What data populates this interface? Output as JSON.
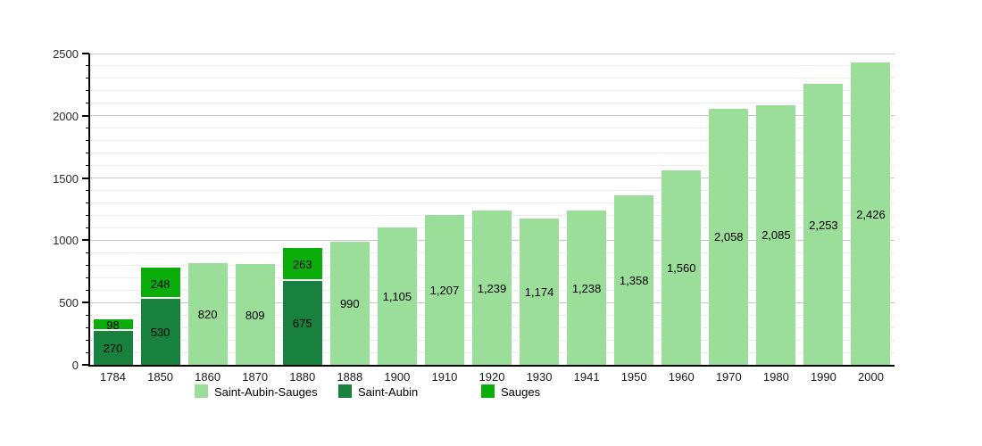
{
  "chart_data": {
    "type": "bar",
    "stacked": true,
    "title": "",
    "xlabel": "",
    "ylabel": "",
    "categories": [
      "1784",
      "1850",
      "1860",
      "1870",
      "1880",
      "1888",
      "1900",
      "1910",
      "1920",
      "1930",
      "1941",
      "1950",
      "1960",
      "1970",
      "1980",
      "1990",
      "2000"
    ],
    "bars": [
      {
        "year": "1784",
        "segments": [
          {
            "series": "Saint-Aubin",
            "value": 270,
            "label": "270"
          },
          {
            "series": "Sauges",
            "value": 98,
            "label": "98"
          }
        ]
      },
      {
        "year": "1850",
        "segments": [
          {
            "series": "Saint-Aubin",
            "value": 530,
            "label": "530"
          },
          {
            "series": "Sauges",
            "value": 248,
            "label": "248"
          }
        ]
      },
      {
        "year": "1860",
        "segments": [
          {
            "series": "Saint-Aubin-Sauges",
            "value": 820,
            "label": "820"
          }
        ]
      },
      {
        "year": "1870",
        "segments": [
          {
            "series": "Saint-Aubin-Sauges",
            "value": 809,
            "label": "809"
          }
        ]
      },
      {
        "year": "1880",
        "segments": [
          {
            "series": "Saint-Aubin",
            "value": 675,
            "label": "675"
          },
          {
            "series": "Sauges",
            "value": 263,
            "label": "263"
          }
        ]
      },
      {
        "year": "1888",
        "segments": [
          {
            "series": "Saint-Aubin-Sauges",
            "value": 990,
            "label": "990"
          }
        ]
      },
      {
        "year": "1900",
        "segments": [
          {
            "series": "Saint-Aubin-Sauges",
            "value": 1105,
            "label": "1,105"
          }
        ]
      },
      {
        "year": "1910",
        "segments": [
          {
            "series": "Saint-Aubin-Sauges",
            "value": 1207,
            "label": "1,207"
          }
        ]
      },
      {
        "year": "1920",
        "segments": [
          {
            "series": "Saint-Aubin-Sauges",
            "value": 1239,
            "label": "1,239"
          }
        ]
      },
      {
        "year": "1930",
        "segments": [
          {
            "series": "Saint-Aubin-Sauges",
            "value": 1174,
            "label": "1,174"
          }
        ]
      },
      {
        "year": "1941",
        "segments": [
          {
            "series": "Saint-Aubin-Sauges",
            "value": 1238,
            "label": "1,238"
          }
        ]
      },
      {
        "year": "1950",
        "segments": [
          {
            "series": "Saint-Aubin-Sauges",
            "value": 1358,
            "label": "1,358"
          }
        ]
      },
      {
        "year": "1960",
        "segments": [
          {
            "series": "Saint-Aubin-Sauges",
            "value": 1560,
            "label": "1,560"
          }
        ]
      },
      {
        "year": "1970",
        "segments": [
          {
            "series": "Saint-Aubin-Sauges",
            "value": 2058,
            "label": "2,058"
          }
        ]
      },
      {
        "year": "1980",
        "segments": [
          {
            "series": "Saint-Aubin-Sauges",
            "value": 2085,
            "label": "2,085"
          }
        ]
      },
      {
        "year": "1990",
        "segments": [
          {
            "series": "Saint-Aubin-Sauges",
            "value": 2253,
            "label": "2,253"
          }
        ]
      },
      {
        "year": "2000",
        "segments": [
          {
            "series": "Saint-Aubin-Sauges",
            "value": 2426,
            "label": "2,426"
          }
        ]
      }
    ],
    "series_colors": {
      "Saint-Aubin-Sauges": "#9ADE9A",
      "Saint-Aubin": "#17813D",
      "Sauges": "#0BAD0B"
    },
    "legend": [
      {
        "label": "Saint-Aubin-Sauges",
        "color": "#9ADE9A"
      },
      {
        "label": "Saint-Aubin",
        "color": "#17813D"
      },
      {
        "label": "Sauges",
        "color": "#0BAD0B"
      }
    ],
    "y_axis": {
      "min": 0,
      "max": 2500,
      "major_step": 500,
      "minor_step": 100,
      "tick_labels": [
        "0",
        "500",
        "1000",
        "1500",
        "2000",
        "2500"
      ]
    },
    "grid": {
      "major_color": "#c9c9c9",
      "minor_color": "#ededed"
    },
    "legend_position": "bottom"
  }
}
